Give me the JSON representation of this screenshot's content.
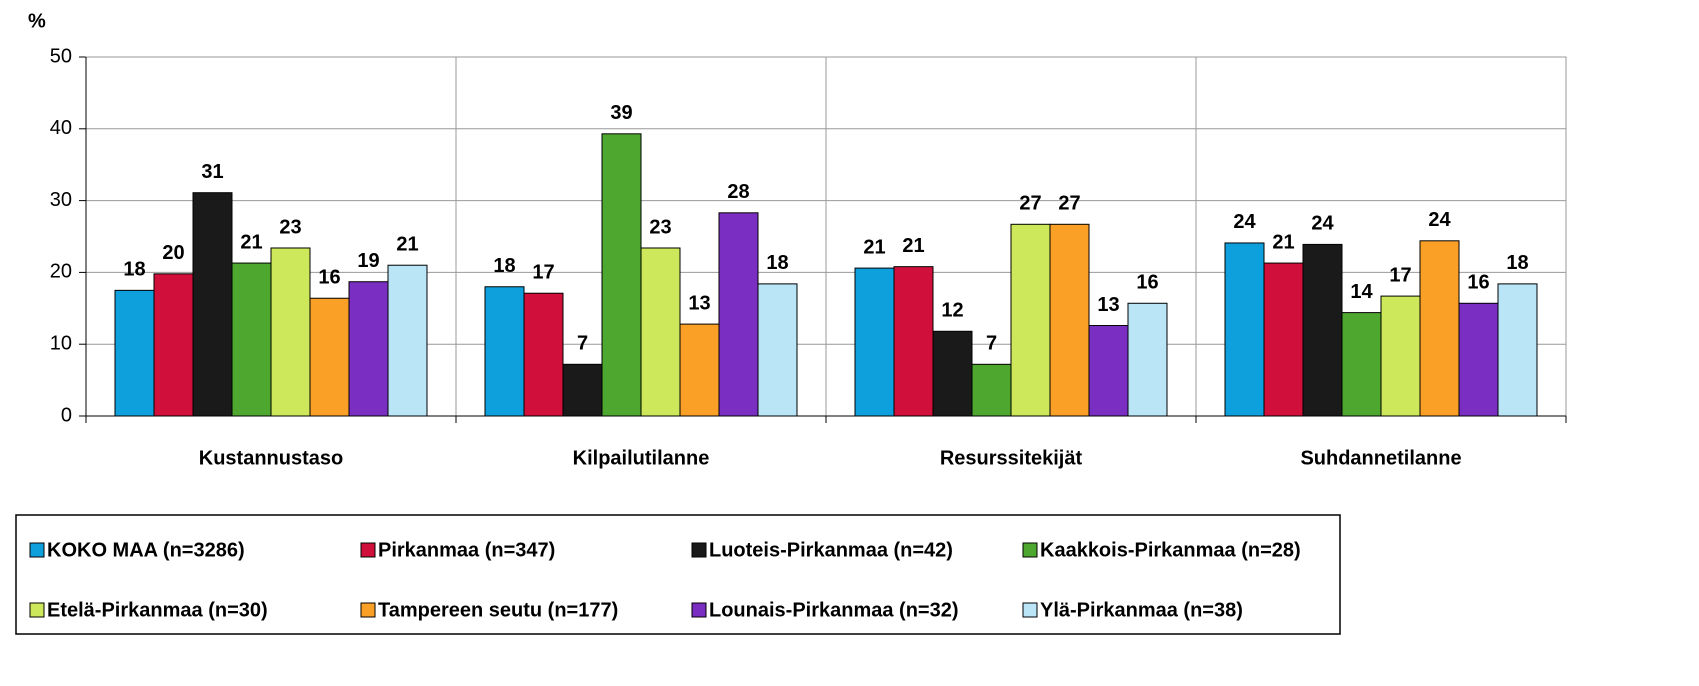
{
  "chart_data": {
    "type": "bar",
    "y_label": "%",
    "categories": [
      "Kustannustaso",
      "Kilpailutilanne",
      "Resurssitekijät",
      "Suhdannetilanne"
    ],
    "ylim": [
      0,
      50
    ],
    "yticks": [
      0,
      10,
      20,
      30,
      40,
      50
    ],
    "grid": true,
    "series": [
      {
        "name": "KOKO MAA  (n=3286)",
        "color": "#0ea0dc",
        "values": [
          17.5,
          18.0,
          20.6,
          24.1
        ],
        "value_labels": [
          "18",
          "18",
          "21",
          "24"
        ]
      },
      {
        "name": "Pirkanmaa (n=347)",
        "color": "#d0103a",
        "values": [
          19.8,
          17.1,
          20.8,
          21.3
        ],
        "value_labels": [
          "20",
          "17",
          "21",
          "21"
        ]
      },
      {
        "name": "Luoteis-Pirkanmaa  (n=42)",
        "color": "#1a1a1a",
        "values": [
          31.1,
          7.2,
          11.8,
          23.9
        ],
        "value_labels": [
          "31",
          "7",
          "12",
          "24"
        ]
      },
      {
        "name": "Kaakkois-Pirkanmaa (n=28)",
        "color": "#4ea72e",
        "values": [
          21.3,
          39.3,
          7.2,
          14.4
        ],
        "value_labels": [
          "21",
          "39",
          "7",
          "14"
        ]
      },
      {
        "name": "Etelä-Pirkanmaa (n=30)",
        "color": "#cde85a",
        "values": [
          23.4,
          23.4,
          26.7,
          16.7
        ],
        "value_labels": [
          "23",
          "23",
          "27",
          "17"
        ]
      },
      {
        "name": "Tampereen seutu (n=177)",
        "color": "#fba026",
        "values": [
          16.4,
          12.8,
          26.7,
          24.4
        ],
        "value_labels": [
          "16",
          "13",
          "27",
          "24"
        ]
      },
      {
        "name": "Lounais-Pirkanmaa  (n=32)",
        "color": "#7a2fc2",
        "values": [
          18.7,
          28.3,
          12.6,
          15.7
        ],
        "value_labels": [
          "19",
          "28",
          "13",
          "16"
        ]
      },
      {
        "name": "Ylä-Pirkanmaa (n=38)",
        "color": "#b9e5f7",
        "values": [
          21.0,
          18.4,
          15.7,
          18.4
        ],
        "value_labels": [
          "21",
          "18",
          "16",
          "18"
        ]
      }
    ]
  }
}
